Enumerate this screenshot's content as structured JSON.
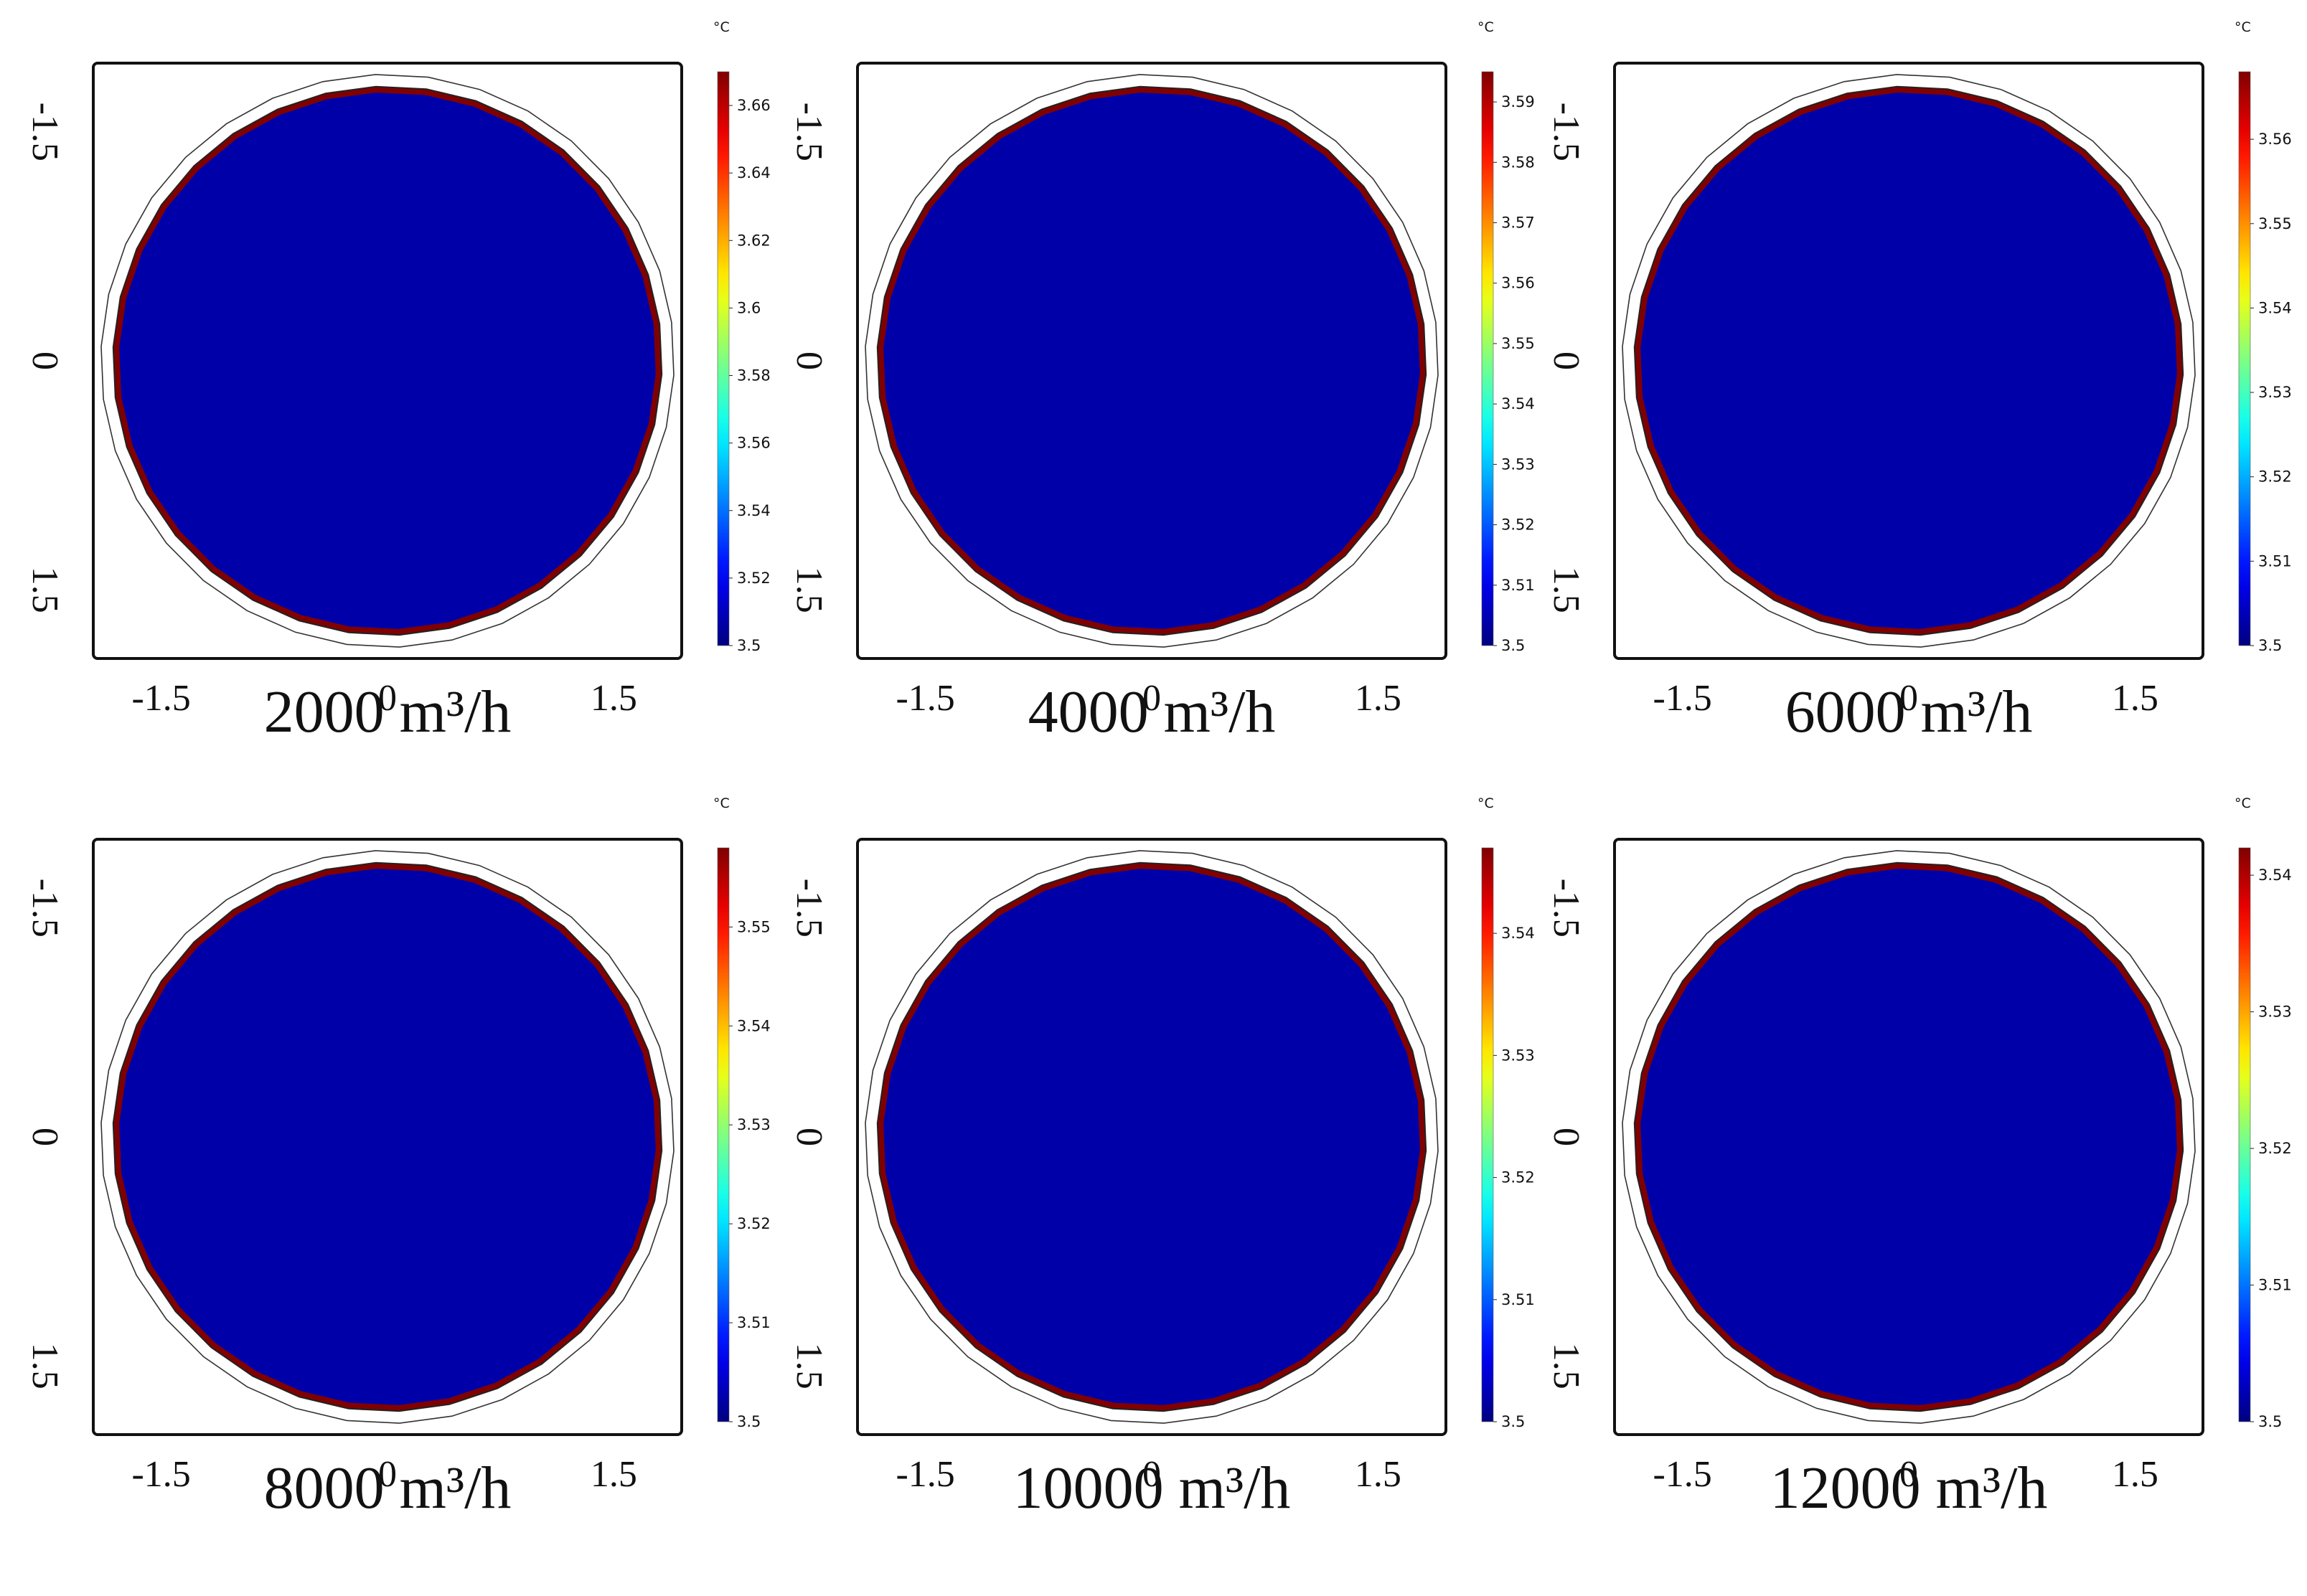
{
  "figure": {
    "unit": "°C"
  },
  "chart_data": [
    {
      "type": "heatmap",
      "title": "2000 m³/h",
      "x_ticks": [
        "-1.5",
        "0",
        "1.5"
      ],
      "y_ticks": [
        "-1.5",
        "0",
        "1.5"
      ],
      "xlim": [
        -1.95,
        1.95
      ],
      "ylim": [
        -1.95,
        1.95
      ],
      "colorbar": {
        "unit": "°C",
        "min": 3.5,
        "max": 3.67,
        "ticks": [
          "3.5",
          "3.52",
          "3.54",
          "3.56",
          "3.58",
          "3.6",
          "3.62",
          "3.64",
          "3.66"
        ]
      },
      "field": {
        "interior_value": 3.5,
        "wall_value": 3.67
      }
    },
    {
      "type": "heatmap",
      "title": "4000 m³/h",
      "x_ticks": [
        "-1.5",
        "0",
        "1.5"
      ],
      "y_ticks": [
        "-1.5",
        "0",
        "1.5"
      ],
      "xlim": [
        -1.95,
        1.95
      ],
      "ylim": [
        -1.95,
        1.95
      ],
      "colorbar": {
        "unit": "°C",
        "min": 3.5,
        "max": 3.595,
        "ticks": [
          "3.5",
          "3.51",
          "3.52",
          "3.53",
          "3.54",
          "3.55",
          "3.56",
          "3.57",
          "3.58",
          "3.59"
        ]
      },
      "field": {
        "interior_value": 3.5,
        "wall_value": 3.595
      }
    },
    {
      "type": "heatmap",
      "title": "6000 m³/h",
      "x_ticks": [
        "-1.5",
        "0",
        "1.5"
      ],
      "y_ticks": [
        "-1.5",
        "0",
        "1.5"
      ],
      "xlim": [
        -1.95,
        1.95
      ],
      "ylim": [
        -1.95,
        1.95
      ],
      "colorbar": {
        "unit": "°C",
        "min": 3.5,
        "max": 3.568,
        "ticks": [
          "3.5",
          "3.51",
          "3.52",
          "3.53",
          "3.54",
          "3.55",
          "3.56"
        ]
      },
      "field": {
        "interior_value": 3.5,
        "wall_value": 3.568
      }
    },
    {
      "type": "heatmap",
      "title": "8000 m³/h",
      "x_ticks": [
        "-1.5",
        "0",
        "1.5"
      ],
      "y_ticks": [
        "-1.5",
        "0",
        "1.5"
      ],
      "xlim": [
        -1.95,
        1.95
      ],
      "ylim": [
        -1.95,
        1.95
      ],
      "colorbar": {
        "unit": "°C",
        "min": 3.5,
        "max": 3.558,
        "ticks": [
          "3.5",
          "3.51",
          "3.52",
          "3.53",
          "3.54",
          "3.55"
        ]
      },
      "field": {
        "interior_value": 3.5,
        "wall_value": 3.558
      }
    },
    {
      "type": "heatmap",
      "title": "10000 m³/h",
      "x_ticks": [
        "-1.5",
        "0",
        "1.5"
      ],
      "y_ticks": [
        "-1.5",
        "0",
        "1.5"
      ],
      "xlim": [
        -1.95,
        1.95
      ],
      "ylim": [
        -1.95,
        1.95
      ],
      "colorbar": {
        "unit": "°C",
        "min": 3.5,
        "max": 3.547,
        "ticks": [
          "3.5",
          "3.51",
          "3.52",
          "3.53",
          "3.54"
        ]
      },
      "field": {
        "interior_value": 3.5,
        "wall_value": 3.547
      }
    },
    {
      "type": "heatmap",
      "title": "12000 m³/h",
      "x_ticks": [
        "-1.5",
        "0",
        "1.5"
      ],
      "y_ticks": [
        "-1.5",
        "0",
        "1.5"
      ],
      "xlim": [
        -1.95,
        1.95
      ],
      "ylim": [
        -1.95,
        1.95
      ],
      "colorbar": {
        "unit": "°C",
        "min": 3.5,
        "max": 3.542,
        "ticks": [
          "3.5",
          "3.51",
          "3.52",
          "3.53",
          "3.54"
        ]
      },
      "field": {
        "interior_value": 3.5,
        "wall_value": 3.542
      }
    }
  ]
}
